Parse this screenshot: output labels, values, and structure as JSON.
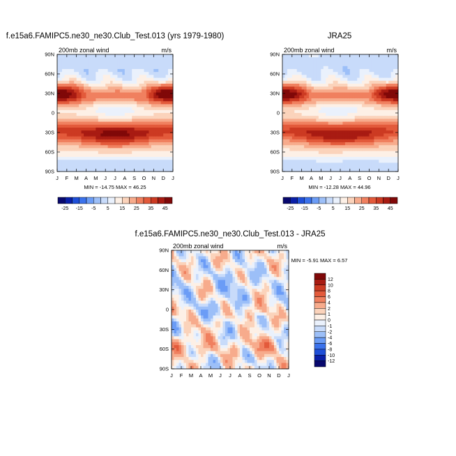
{
  "chart_data": [
    {
      "type": "heatmap",
      "title": "f.e15a6.FAMIPC5.ne30_ne30.Club_Test.013 (yrs 1979-1980)",
      "subtitle_left": "200mb zonal wind",
      "subtitle_right": "m/s",
      "x_ticks": [
        "J",
        "F",
        "M",
        "A",
        "M",
        "J",
        "J",
        "A",
        "S",
        "O",
        "N",
        "D",
        "J"
      ],
      "y_ticks": [
        "90N",
        "60N",
        "30N",
        "0",
        "30S",
        "60S",
        "90S"
      ],
      "ylim": [
        -90,
        90
      ],
      "min_max_text": "MIN = -14.75  MAX =  46.25",
      "colorbar_labels": [
        "-25",
        "-15",
        "-5",
        "5",
        "15",
        "25",
        "35",
        "45"
      ],
      "field": "model"
    },
    {
      "type": "heatmap",
      "title": "JRA25",
      "subtitle_left": "200mb zonal wind",
      "subtitle_right": "m/s",
      "x_ticks": [
        "J",
        "F",
        "M",
        "A",
        "M",
        "J",
        "J",
        "A",
        "S",
        "O",
        "N",
        "D",
        "J"
      ],
      "y_ticks": [
        "90N",
        "60N",
        "30N",
        "0",
        "30S",
        "60S",
        "90S"
      ],
      "ylim": [
        -90,
        90
      ],
      "min_max_text": "MIN = -12.28  MAX =  44.96",
      "colorbar_labels": [
        "-25",
        "-15",
        "-5",
        "5",
        "15",
        "25",
        "35",
        "45"
      ],
      "field": "obs"
    },
    {
      "type": "heatmap",
      "title": "f.e15a6.FAMIPC5.ne30_ne30.Club_Test.013 - JRA25",
      "subtitle_left": "200mb zonal wind",
      "subtitle_right": "m/s",
      "x_ticks": [
        "J",
        "F",
        "M",
        "A",
        "M",
        "J",
        "J",
        "A",
        "S",
        "O",
        "N",
        "D",
        "J"
      ],
      "y_ticks": [
        "90N",
        "60N",
        "30N",
        "0",
        "30S",
        "60S",
        "90S"
      ],
      "ylim": [
        -90,
        90
      ],
      "min_max_text": "MIN =  -5.91  MAX =   6.57",
      "colorbar_labels": [
        "12",
        "10",
        "8",
        "6",
        "4",
        "2",
        "1",
        "0",
        "-1",
        "-2",
        "-4",
        "-6",
        "-8",
        "-10",
        "-12"
      ],
      "field": "diff"
    }
  ],
  "colors": {
    "main_scale": [
      "#08086e",
      "#0a1fa8",
      "#1f4fd8",
      "#3b72ec",
      "#6b9cf6",
      "#9cbff8",
      "#c8dbfa",
      "#eaf1fc",
      "#fdf0e6",
      "#fbd3bb",
      "#f7ab8c",
      "#f0805f",
      "#e35a3b",
      "#cc3a22",
      "#a81b12",
      "#800808"
    ],
    "diff_scale": [
      "#08086e",
      "#0a1fa8",
      "#1f4fd8",
      "#3b72ec",
      "#6b9cf6",
      "#9cbff8",
      "#c8dbfa",
      "#eaf1fc",
      "#fdf0e6",
      "#fbd3bb",
      "#f7ab8c",
      "#f0805f",
      "#e35a3b",
      "#cc3a22",
      "#a81b12",
      "#800808"
    ]
  }
}
